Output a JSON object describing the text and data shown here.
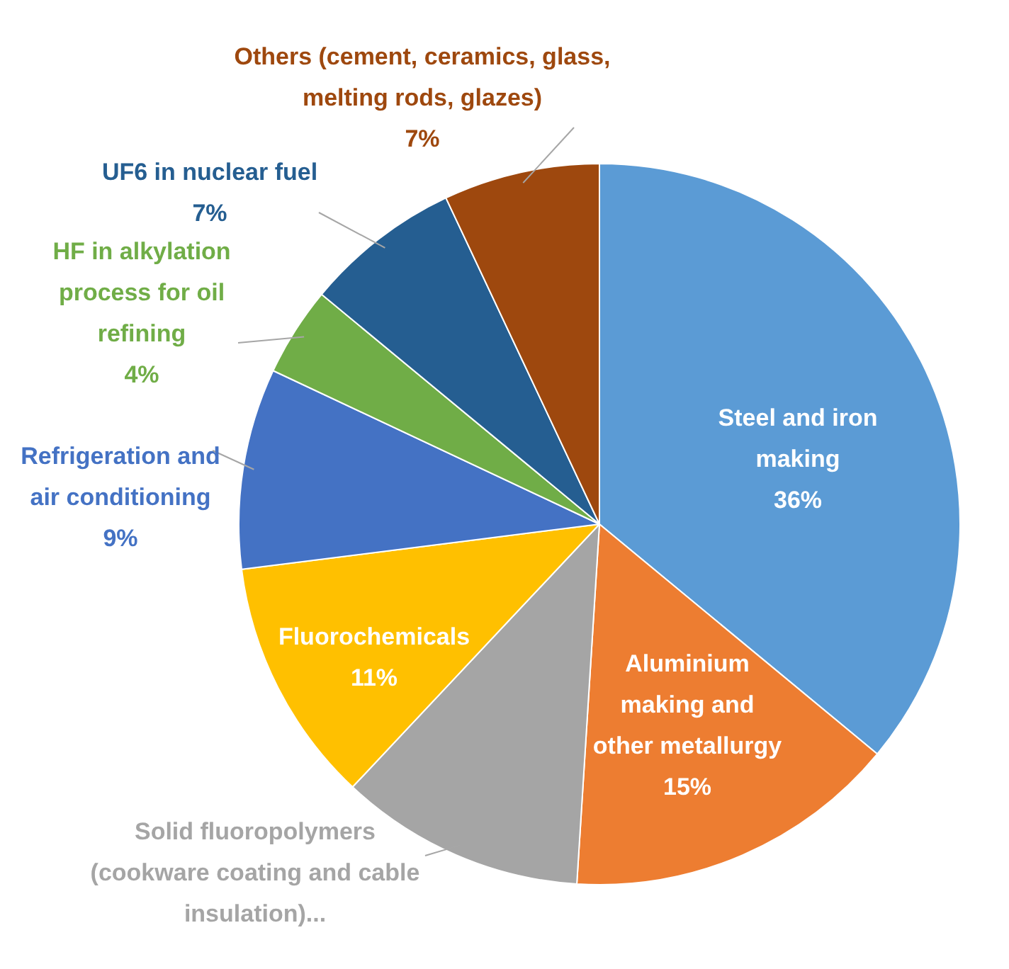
{
  "chart_data": {
    "type": "pie",
    "categories": [
      "Steel and iron making",
      "Aluminium making and other metallurgy",
      "Solid fluoropolymers (cookware coating and cable insulation)...",
      "Fluorochemicals",
      "Refrigeration and air conditioning",
      "HF in alkylation process for oil refining",
      "UF6 in nuclear fuel",
      "Others (cement, ceramics, glass, melting rods, glazes)"
    ],
    "values": [
      36,
      15,
      11,
      11,
      9,
      4,
      7,
      7
    ],
    "colors": [
      "#5b9bd5",
      "#ed7d31",
      "#a5a5a5",
      "#ffc000",
      "#4472c4",
      "#70ad47",
      "#255e91",
      "#9e480e"
    ],
    "value_labels": [
      "36%",
      "15%",
      null,
      "11%",
      "9%",
      "4%",
      "7%",
      "7%"
    ],
    "legend": false
  }
}
